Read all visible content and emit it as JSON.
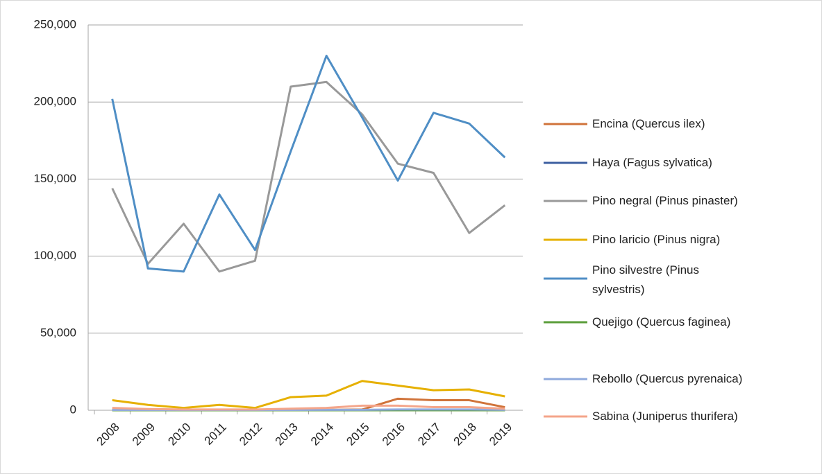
{
  "chart_data": {
    "type": "line",
    "categories": [
      "2008",
      "2009",
      "2010",
      "2011",
      "2012",
      "2013",
      "2014",
      "2015",
      "2016",
      "2017",
      "2018",
      "2019"
    ],
    "series": [
      {
        "name": "Encina (Quercus ilex)",
        "color": "#d0733a",
        "values": [
          500,
          200,
          100,
          100,
          100,
          200,
          300,
          500,
          7500,
          6500,
          6500,
          2000
        ]
      },
      {
        "name": "Haya (Fagus sylvatica)",
        "color": "#3c5fa0",
        "values": [
          0,
          0,
          0,
          0,
          0,
          0,
          0,
          0,
          0,
          0,
          0,
          0
        ]
      },
      {
        "name": "Pino negral (Pinus pinaster)",
        "color": "#999999",
        "values": [
          144000,
          95000,
          121000,
          90000,
          97000,
          210000,
          213000,
          192000,
          160000,
          154000,
          115000,
          133000
        ]
      },
      {
        "name": "Pino laricio (Pinus nigra)",
        "color": "#e6b000",
        "values": [
          6500,
          3500,
          1500,
          3500,
          1500,
          8500,
          9500,
          19000,
          16000,
          13000,
          13500,
          9000
        ]
      },
      {
        "name": "Pino silvestre (Pinus sylvestris)",
        "color": "#4f8ec5",
        "values": [
          202000,
          92000,
          90000,
          140000,
          104000,
          168000,
          230000,
          190000,
          149000,
          193000,
          186000,
          164000
        ]
      },
      {
        "name": "Quejigo (Quercus faginea)",
        "color": "#5a9e3a",
        "values": [
          0,
          0,
          0,
          0,
          0,
          0,
          0,
          0,
          0,
          0,
          0,
          0
        ]
      },
      {
        "name": "Rebollo (Quercus pyrenaica)",
        "color": "#8faadc",
        "values": [
          200,
          200,
          200,
          200,
          200,
          200,
          300,
          300,
          500,
          500,
          500,
          300
        ]
      },
      {
        "name": "Sabina (Juniperus thurifera)",
        "color": "#f4a58a",
        "values": [
          1500,
          800,
          500,
          500,
          500,
          1000,
          1500,
          3000,
          3000,
          2000,
          2000,
          1000
        ]
      }
    ],
    "ylim": [
      0,
      250000
    ],
    "yticks": [
      {
        "value": 0,
        "label": "0"
      },
      {
        "value": 50000,
        "label": "50,000"
      },
      {
        "value": 100000,
        "label": "100,000"
      },
      {
        "value": 150000,
        "label": "150,000"
      },
      {
        "value": 200000,
        "label": "200,000"
      },
      {
        "value": 250000,
        "label": "250,000"
      }
    ],
    "grid": true,
    "legend": "right"
  }
}
